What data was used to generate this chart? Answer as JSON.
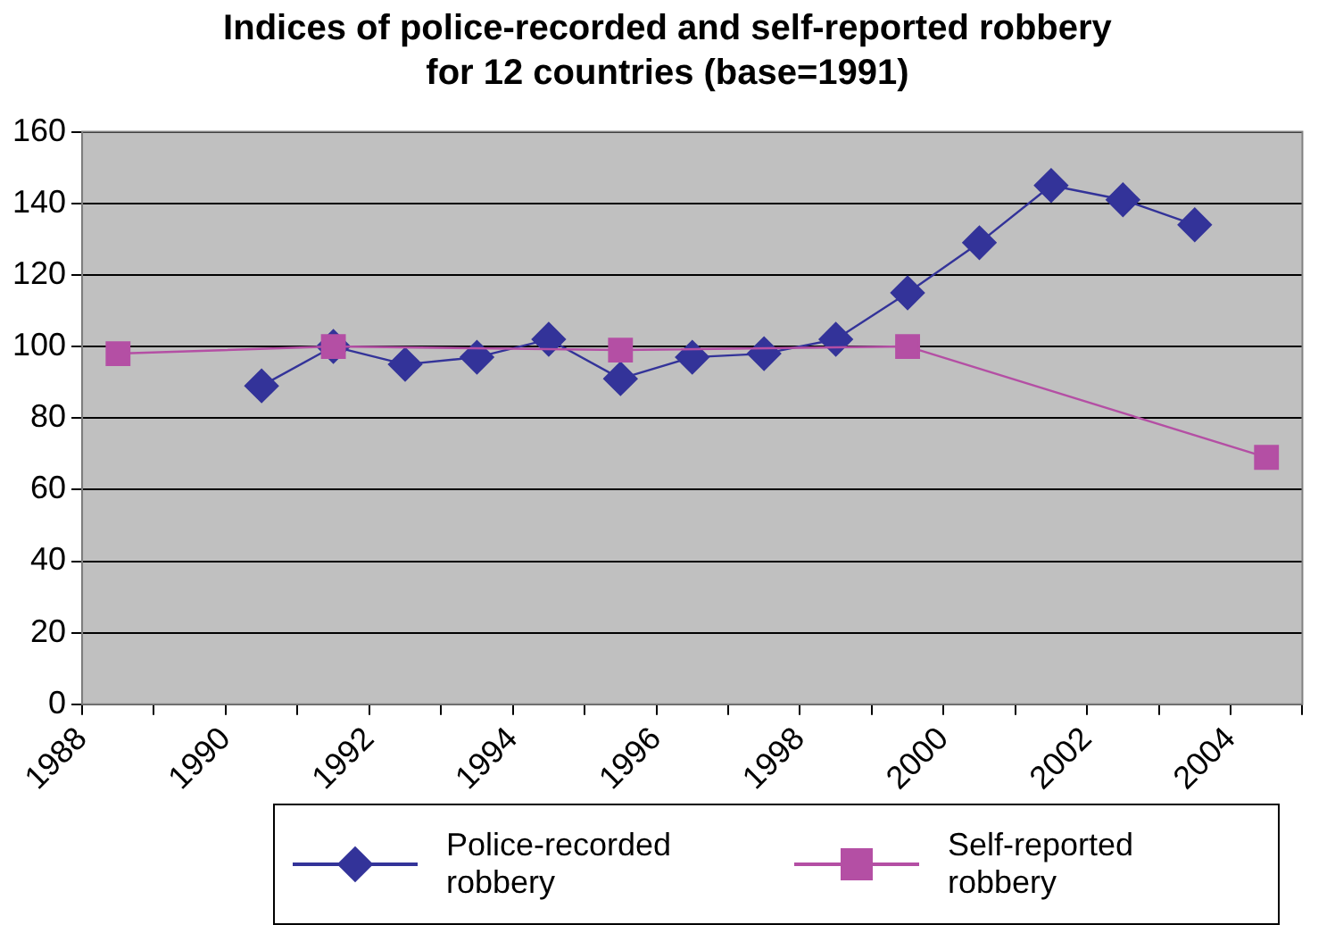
{
  "chart_data": {
    "type": "line",
    "title": "Indices of police-recorded and self-reported robbery\nfor 12 countries (base=1991)",
    "series": [
      {
        "name": "Police-recorded robbery",
        "color": "#333399",
        "marker": "diamond",
        "x": [
          1990.5,
          1991.5,
          1992.5,
          1993.5,
          1994.5,
          1995.5,
          1996.5,
          1997.5,
          1998.5,
          1999.5,
          2000.5,
          2001.5,
          2002.5,
          2003.5
        ],
        "values": [
          89,
          100,
          95,
          97,
          102,
          91,
          97,
          98,
          102,
          115,
          129,
          145,
          141,
          134
        ]
      },
      {
        "name": "Self-reported robbery",
        "color": "#b44fa4",
        "marker": "square",
        "x": [
          1988.5,
          1991.5,
          1995.5,
          1999.5,
          2004.5
        ],
        "values": [
          98,
          100,
          99,
          100,
          69
        ]
      }
    ],
    "xlim": [
      1988,
      2005
    ],
    "xticks": [
      1988,
      {
        "value": 1989,
        "label": null
      },
      1990,
      {
        "value": 1991,
        "label": null
      },
      1992,
      {
        "value": 1993,
        "label": null
      },
      1994,
      {
        "value": 1995,
        "label": null
      },
      1996,
      {
        "value": 1997,
        "label": null
      },
      1998,
      {
        "value": 1999,
        "label": null
      },
      2000,
      {
        "value": 2001,
        "label": null
      },
      2002,
      {
        "value": 2003,
        "label": null
      },
      2004,
      {
        "value": 2005,
        "label": null
      }
    ],
    "ylim": [
      0,
      160
    ],
    "yticks": [
      0,
      20,
      40,
      60,
      80,
      100,
      120,
      140,
      160
    ],
    "grid": "y",
    "legend": "bottom"
  }
}
